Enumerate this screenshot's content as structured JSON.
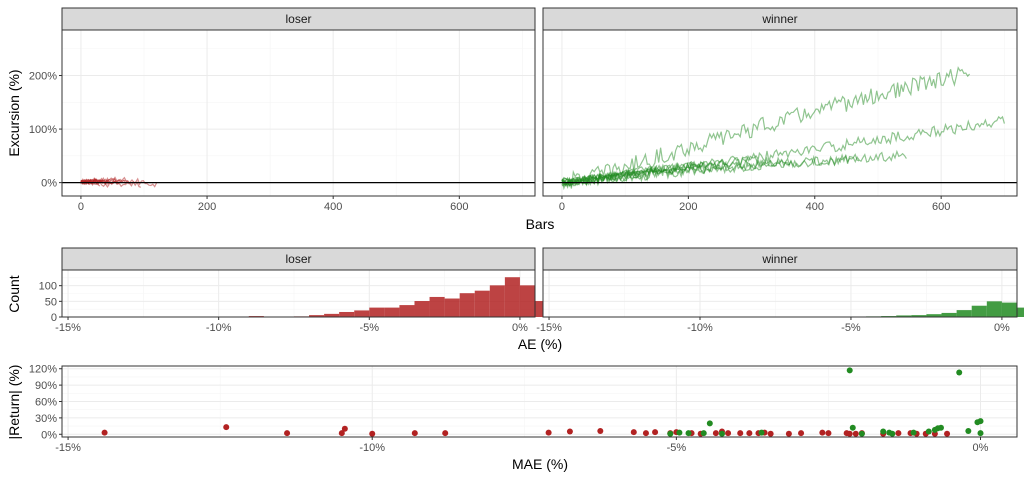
{
  "colors": {
    "loser": "#b22222",
    "winner": "#228b22",
    "zero_line": "#000000"
  },
  "chart_data": [
    {
      "type": "line",
      "facets": [
        "loser",
        "winner"
      ],
      "xlabel": "Bars",
      "ylabel": "Excursion (%)",
      "xlim": [
        -30,
        720
      ],
      "ylim": [
        -25,
        285
      ],
      "x_ticks": [
        0,
        200,
        400,
        600
      ],
      "x_tick_labels": [
        "0",
        "200",
        "400",
        "600"
      ],
      "y_ticks": [
        0,
        100,
        200
      ],
      "y_tick_labels": [
        "0%",
        "100%",
        "200%"
      ],
      "hline": 0,
      "series": [
        {
          "facet": "loser",
          "length": 120,
          "end": -3,
          "peak": 12,
          "amplitude": 6
        },
        {
          "facet": "loser",
          "length": 95,
          "end": -5,
          "peak": 8,
          "amplitude": 5
        },
        {
          "facet": "loser",
          "length": 80,
          "end": -2,
          "peak": 10,
          "amplitude": 5
        },
        {
          "facet": "loser",
          "length": 70,
          "end": -6,
          "peak": 6,
          "amplitude": 4
        },
        {
          "facet": "loser",
          "length": 60,
          "end": -4,
          "peak": 14,
          "amplitude": 6
        },
        {
          "facet": "loser",
          "length": 55,
          "end": -1,
          "peak": 5,
          "amplitude": 4
        },
        {
          "facet": "loser",
          "length": 45,
          "end": -7,
          "peak": 9,
          "amplitude": 5
        },
        {
          "facet": "loser",
          "length": 40,
          "end": -3,
          "peak": 11,
          "amplitude": 5
        },
        {
          "facet": "loser",
          "length": 35,
          "end": -2,
          "peak": 7,
          "amplitude": 4
        },
        {
          "facet": "loser",
          "length": 30,
          "end": -5,
          "peak": 4,
          "amplitude": 3
        },
        {
          "facet": "loser",
          "length": 25,
          "end": -1,
          "peak": 6,
          "amplitude": 3
        },
        {
          "facet": "loser",
          "length": 20,
          "end": -4,
          "peak": 3,
          "amplitude": 3
        },
        {
          "facet": "winner",
          "length": 645,
          "end": 205,
          "peak": 275,
          "amplitude": 16
        },
        {
          "facet": "winner",
          "length": 700,
          "end": 115,
          "peak": 135,
          "amplitude": 10
        },
        {
          "facet": "winner",
          "length": 545,
          "end": 50,
          "peak": 72,
          "amplitude": 9
        },
        {
          "facet": "winner",
          "length": 470,
          "end": 45,
          "peak": 65,
          "amplitude": 9
        },
        {
          "facet": "winner",
          "length": 360,
          "end": 40,
          "peak": 60,
          "amplitude": 8
        },
        {
          "facet": "winner",
          "length": 310,
          "end": 45,
          "peak": 55,
          "amplitude": 8
        },
        {
          "facet": "winner",
          "length": 260,
          "end": 38,
          "peak": 50,
          "amplitude": 8
        },
        {
          "facet": "winner",
          "length": 220,
          "end": 35,
          "peak": 45,
          "amplitude": 7
        },
        {
          "facet": "winner",
          "length": 180,
          "end": 25,
          "peak": 38,
          "amplitude": 7
        },
        {
          "facet": "winner",
          "length": 150,
          "end": 28,
          "peak": 35,
          "amplitude": 6
        },
        {
          "facet": "winner",
          "length": 120,
          "end": 20,
          "peak": 30,
          "amplitude": 6
        },
        {
          "facet": "winner",
          "length": 90,
          "end": 15,
          "peak": 22,
          "amplitude": 5
        }
      ]
    },
    {
      "type": "bar",
      "facets": [
        "loser",
        "winner"
      ],
      "xlabel": "AE (%)",
      "ylabel": "Count",
      "xlim": [
        -15.2,
        0.5
      ],
      "ylim": [
        0,
        150
      ],
      "x_ticks": [
        -15,
        -10,
        -5,
        0
      ],
      "x_tick_labels": [
        "-15%",
        "-10%",
        "-5%",
        "0%"
      ],
      "y_ticks": [
        0,
        50,
        100
      ],
      "y_tick_labels": [
        "0",
        "50",
        "100"
      ],
      "bin_width": 0.5,
      "series": [
        {
          "name": "loser",
          "bins": [
            {
              "x": -10.25,
              "count": 1
            },
            {
              "x": -8.75,
              "count": 3
            },
            {
              "x": -7.25,
              "count": 2
            },
            {
              "x": -6.75,
              "count": 6
            },
            {
              "x": -6.25,
              "count": 10
            },
            {
              "x": -5.75,
              "count": 16
            },
            {
              "x": -5.25,
              "count": 21
            },
            {
              "x": -4.75,
              "count": 30
            },
            {
              "x": -4.25,
              "count": 30
            },
            {
              "x": -3.75,
              "count": 38
            },
            {
              "x": -3.25,
              "count": 51
            },
            {
              "x": -2.75,
              "count": 64
            },
            {
              "x": -2.25,
              "count": 59
            },
            {
              "x": -1.75,
              "count": 76
            },
            {
              "x": -1.25,
              "count": 84
            },
            {
              "x": -0.75,
              "count": 101
            },
            {
              "x": -0.25,
              "count": 127
            },
            {
              "x": 0.25,
              "count": 101
            },
            {
              "x": 0.75,
              "count": 51
            }
          ]
        },
        {
          "name": "winner",
          "bins": [
            {
              "x": -5.25,
              "count": 1
            },
            {
              "x": -4.75,
              "count": 1
            },
            {
              "x": -4.25,
              "count": 2
            },
            {
              "x": -3.75,
              "count": 3
            },
            {
              "x": -3.25,
              "count": 5
            },
            {
              "x": -2.75,
              "count": 6
            },
            {
              "x": -2.25,
              "count": 9
            },
            {
              "x": -1.75,
              "count": 13
            },
            {
              "x": -1.25,
              "count": 22
            },
            {
              "x": -0.75,
              "count": 36
            },
            {
              "x": -0.25,
              "count": 50
            },
            {
              "x": 0.25,
              "count": 46
            },
            {
              "x": 0.75,
              "count": 30
            }
          ]
        }
      ]
    },
    {
      "type": "scatter",
      "xlabel": "MAE (%)",
      "ylabel": "|Return| (%)",
      "xlim": [
        -15.1,
        0.6
      ],
      "ylim": [
        -5,
        125
      ],
      "x_ticks": [
        -15,
        -10,
        -5,
        0
      ],
      "x_tick_labels": [
        "-15%",
        "-10%",
        "-5%",
        "0%"
      ],
      "y_ticks": [
        0,
        30,
        60,
        90,
        120
      ],
      "y_tick_labels": [
        "0%",
        "30%",
        "60%",
        "90%",
        "120%"
      ],
      "series": [
        {
          "name": "loser",
          "points": [
            [
              -14.4,
              3
            ],
            [
              -12.4,
              13
            ],
            [
              -11.4,
              2
            ],
            [
              -10.5,
              2
            ],
            [
              -10.45,
              10
            ],
            [
              -10.0,
              1
            ],
            [
              -9.3,
              2
            ],
            [
              -8.8,
              2
            ],
            [
              -7.1,
              3
            ],
            [
              -6.75,
              5
            ],
            [
              -6.25,
              6
            ],
            [
              -5.7,
              4
            ],
            [
              -5.5,
              2
            ],
            [
              -5.35,
              4
            ],
            [
              -5.1,
              2
            ],
            [
              -5.0,
              4
            ],
            [
              -4.75,
              2
            ],
            [
              -4.6,
              1
            ],
            [
              -4.35,
              2
            ],
            [
              -4.25,
              5
            ],
            [
              -4.15,
              2
            ],
            [
              -3.95,
              2
            ],
            [
              -3.8,
              2
            ],
            [
              -3.65,
              2
            ],
            [
              -3.55,
              3
            ],
            [
              -3.45,
              1
            ],
            [
              -3.15,
              1
            ],
            [
              -2.95,
              2
            ],
            [
              -2.6,
              3
            ],
            [
              -2.5,
              2
            ],
            [
              -2.2,
              2
            ],
            [
              -2.15,
              1
            ],
            [
              -2.05,
              1
            ],
            [
              -1.95,
              2
            ],
            [
              -1.6,
              1
            ],
            [
              -1.35,
              2
            ],
            [
              -1.15,
              2
            ],
            [
              -1.05,
              1
            ],
            [
              -0.9,
              1
            ],
            [
              -0.75,
              1
            ],
            [
              -0.55,
              1
            ]
          ]
        },
        {
          "name": "winner",
          "points": [
            [
              -2.15,
              117
            ],
            [
              -0.35,
              113
            ],
            [
              -4.45,
              20
            ],
            [
              -2.1,
              12
            ],
            [
              -1.95,
              1
            ],
            [
              -1.6,
              5
            ],
            [
              -1.5,
              3
            ],
            [
              -1.45,
              1
            ],
            [
              -1.1,
              3
            ],
            [
              -0.85,
              5
            ],
            [
              -0.75,
              8
            ],
            [
              -0.7,
              11
            ],
            [
              -0.65,
              12
            ],
            [
              -0.2,
              6
            ],
            [
              0.0,
              24
            ],
            [
              -0.05,
              22
            ],
            [
              0.0,
              2
            ],
            [
              -4.8,
              2
            ],
            [
              -5.1,
              1
            ],
            [
              -4.95,
              3
            ],
            [
              -4.55,
              2
            ],
            [
              -4.25,
              1
            ],
            [
              -3.6,
              3
            ]
          ]
        }
      ]
    }
  ]
}
